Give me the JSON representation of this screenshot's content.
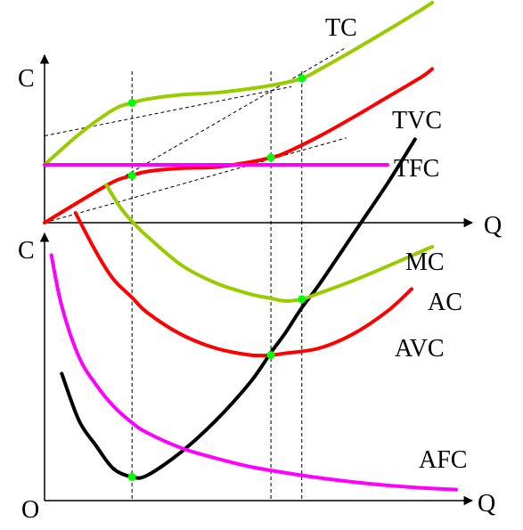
{
  "colors": {
    "tc": "#99cc00",
    "tvc": "#ff0000",
    "tfc": "#ff00ff",
    "mc": "#000000",
    "ac": "#99cc00",
    "avc": "#ff0000",
    "afc": "#ff00ff",
    "points": "#00ff00",
    "axes": "#000000"
  },
  "labels": {
    "top_y": "C",
    "top_x": "Q",
    "bottom_y": "C",
    "bottom_x": "Q",
    "origin": "O",
    "tc": "TC",
    "tvc": "TVC",
    "tfc": "TFC",
    "mc": "MC",
    "ac": "AC",
    "avc": "AVC",
    "afc": "AFC"
  },
  "chart_data": [
    {
      "type": "line",
      "title": "",
      "xlabel": "Q",
      "ylabel": "C",
      "grid": false,
      "reference_points_q": [
        2.55,
        6.6,
        7.5
      ],
      "series": [
        {
          "name": "TC",
          "x": [
            0,
            1,
            2,
            2.55,
            3,
            4,
            5,
            6,
            6.6,
            7,
            7.5,
            8,
            9,
            10,
            11,
            11.3
          ],
          "y": [
            2.0,
            3.05,
            3.9,
            4.14,
            4.27,
            4.42,
            4.49,
            4.63,
            4.74,
            4.83,
            4.98,
            5.28,
            5.95,
            6.65,
            7.37,
            7.6
          ]
        },
        {
          "name": "TVC",
          "x": [
            0,
            1,
            2,
            2.55,
            3,
            4,
            5,
            6,
            6.6,
            7,
            8,
            9,
            10,
            11,
            11.3
          ],
          "y": [
            0,
            0.72,
            1.41,
            1.63,
            1.77,
            1.88,
            1.92,
            2.1,
            2.25,
            2.4,
            2.98,
            3.64,
            4.34,
            5.04,
            5.31
          ]
        },
        {
          "name": "TFC",
          "x": [
            0,
            10
          ],
          "y": [
            2.0,
            2.0
          ]
        }
      ],
      "tangent_lines": [
        {
          "x": [
            0,
            7.2
          ],
          "y": [
            3.0,
            4.7
          ]
        },
        {
          "x": [
            0,
            8.8
          ],
          "y": [
            0,
            6.06
          ]
        },
        {
          "x": [
            0,
            8.8
          ],
          "y": [
            0,
            2.93
          ]
        }
      ],
      "marked_points": [
        {
          "x": 2.55,
          "y": 4.14
        },
        {
          "x": 7.5,
          "y": 4.98
        },
        {
          "x": 2.55,
          "y": 1.63
        },
        {
          "x": 6.6,
          "y": 2.25
        }
      ]
    },
    {
      "type": "line",
      "title": "",
      "xlabel": "Q",
      "ylabel": "C",
      "grid": false,
      "reference_points_q": [
        2.55,
        6.6,
        7.5
      ],
      "series": [
        {
          "name": "MC",
          "x": [
            0.5,
            1,
            1.5,
            2,
            2.55,
            3,
            4,
            5,
            6,
            6.6,
            7,
            7.5,
            8,
            9,
            10,
            10.8
          ],
          "y": [
            1.5,
            0.95,
            0.65,
            0.38,
            0.28,
            0.3,
            0.58,
            0.95,
            1.4,
            1.75,
            1.97,
            2.28,
            2.55,
            3.15,
            3.75,
            4.27
          ]
        },
        {
          "name": "AC",
          "x": [
            1.8,
            2.2,
            2.55,
            3,
            4,
            5,
            6,
            6.6,
            7,
            7.5,
            8,
            9,
            10,
            11.3
          ],
          "y": [
            3.73,
            3.47,
            3.3,
            3.12,
            2.78,
            2.57,
            2.44,
            2.39,
            2.36,
            2.38,
            2.45,
            2.6,
            2.77,
            3.0
          ]
        },
        {
          "name": "AVC",
          "x": [
            0.9,
            1.5,
            2,
            2.55,
            3,
            4,
            5,
            6,
            6.6,
            7,
            8,
            9,
            10,
            10.7
          ],
          "y": [
            3.4,
            2.94,
            2.62,
            2.4,
            2.22,
            1.96,
            1.8,
            1.72,
            1.72,
            1.74,
            1.8,
            1.97,
            2.24,
            2.5
          ]
        },
        {
          "name": "AFC",
          "x": [
            0.2,
            0.5,
            1,
            1.5,
            2,
            2.55,
            3,
            4,
            5,
            6,
            7,
            8,
            9,
            10,
            11,
            12
          ],
          "y": [
            2.9,
            2.3,
            1.7,
            1.37,
            1.12,
            0.92,
            0.8,
            0.62,
            0.5,
            0.4,
            0.33,
            0.27,
            0.22,
            0.18,
            0.15,
            0.13
          ]
        }
      ],
      "marked_points": [
        {
          "x": 2.55,
          "y": 0.28
        },
        {
          "x": 6.6,
          "y": 1.72
        },
        {
          "x": 7.5,
          "y": 2.38
        }
      ]
    }
  ]
}
